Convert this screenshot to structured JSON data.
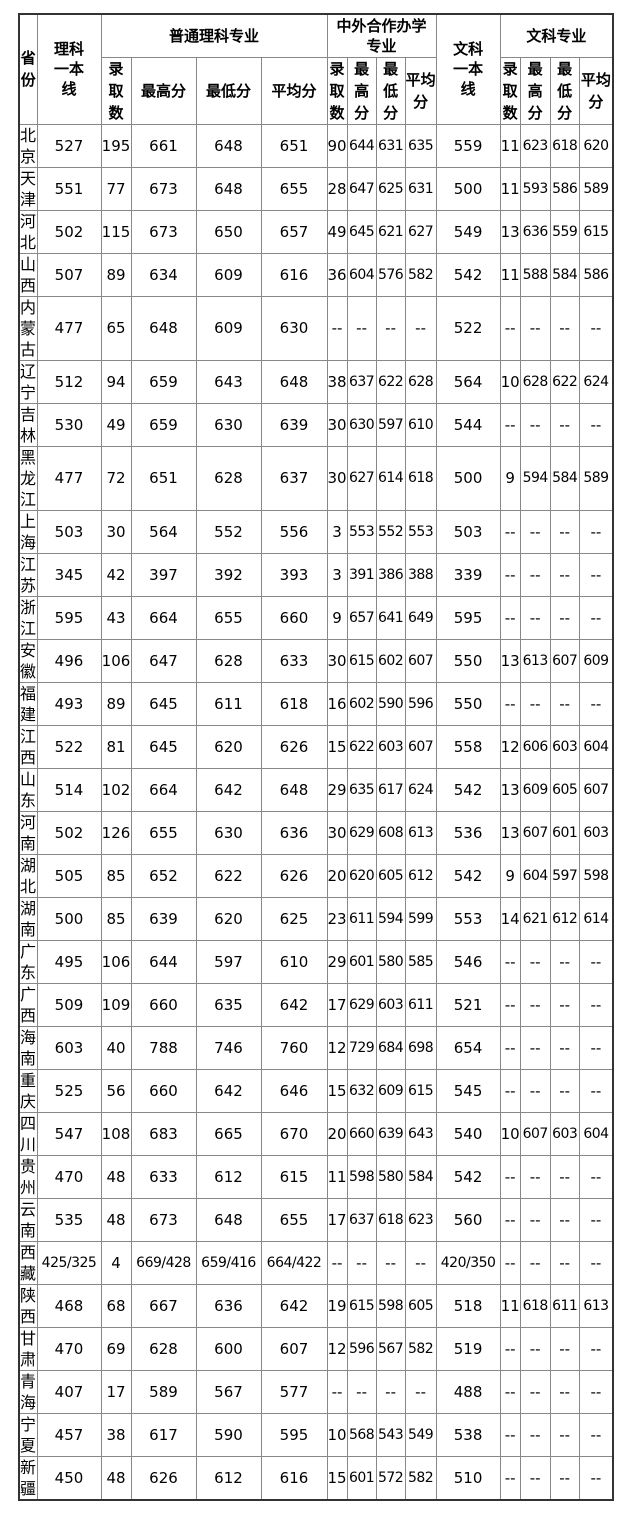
{
  "headers": {
    "province": "省份",
    "science_line": "理科一本线",
    "science_group": "普通理科专业",
    "coop_group": "中外合作办学专业",
    "arts_line": "文科一本线",
    "arts_group": "文科专业",
    "count": "录取数",
    "max": "最高分",
    "min": "最低分",
    "avg": "平均分"
  },
  "rows": [
    [
      "北京",
      "527",
      "195",
      "661",
      "648",
      "651",
      "90",
      "644",
      "631",
      "635",
      "559",
      "11",
      "623",
      "618",
      "620"
    ],
    [
      "天津",
      "551",
      "77",
      "673",
      "648",
      "655",
      "28",
      "647",
      "625",
      "631",
      "500",
      "11",
      "593",
      "586",
      "589"
    ],
    [
      "河北",
      "502",
      "115",
      "673",
      "650",
      "657",
      "49",
      "645",
      "621",
      "627",
      "549",
      "13",
      "636",
      "559",
      "615"
    ],
    [
      "山西",
      "507",
      "89",
      "634",
      "609",
      "616",
      "36",
      "604",
      "576",
      "582",
      "542",
      "11",
      "588",
      "584",
      "586"
    ],
    [
      "内蒙古",
      "477",
      "65",
      "648",
      "609",
      "630",
      "--",
      "--",
      "--",
      "--",
      "522",
      "--",
      "--",
      "--",
      "--"
    ],
    [
      "辽宁",
      "512",
      "94",
      "659",
      "643",
      "648",
      "38",
      "637",
      "622",
      "628",
      "564",
      "10",
      "628",
      "622",
      "624"
    ],
    [
      "吉林",
      "530",
      "49",
      "659",
      "630",
      "639",
      "30",
      "630",
      "597",
      "610",
      "544",
      "--",
      "--",
      "--",
      "--"
    ],
    [
      "黑龙江",
      "477",
      "72",
      "651",
      "628",
      "637",
      "30",
      "627",
      "614",
      "618",
      "500",
      "9",
      "594",
      "584",
      "589"
    ],
    [
      "上海",
      "503",
      "30",
      "564",
      "552",
      "556",
      "3",
      "553",
      "552",
      "553",
      "503",
      "--",
      "--",
      "--",
      "--"
    ],
    [
      "江苏",
      "345",
      "42",
      "397",
      "392",
      "393",
      "3",
      "391",
      "386",
      "388",
      "339",
      "--",
      "--",
      "--",
      "--"
    ],
    [
      "浙江",
      "595",
      "43",
      "664",
      "655",
      "660",
      "9",
      "657",
      "641",
      "649",
      "595",
      "--",
      "--",
      "--",
      "--"
    ],
    [
      "安徽",
      "496",
      "106",
      "647",
      "628",
      "633",
      "30",
      "615",
      "602",
      "607",
      "550",
      "13",
      "613",
      "607",
      "609"
    ],
    [
      "福建",
      "493",
      "89",
      "645",
      "611",
      "618",
      "16",
      "602",
      "590",
      "596",
      "550",
      "--",
      "--",
      "--",
      "--"
    ],
    [
      "江西",
      "522",
      "81",
      "645",
      "620",
      "626",
      "15",
      "622",
      "603",
      "607",
      "558",
      "12",
      "606",
      "603",
      "604"
    ],
    [
      "山东",
      "514",
      "102",
      "664",
      "642",
      "648",
      "29",
      "635",
      "617",
      "624",
      "542",
      "13",
      "609",
      "605",
      "607"
    ],
    [
      "河南",
      "502",
      "126",
      "655",
      "630",
      "636",
      "30",
      "629",
      "608",
      "613",
      "536",
      "13",
      "607",
      "601",
      "603"
    ],
    [
      "湖北",
      "505",
      "85",
      "652",
      "622",
      "626",
      "20",
      "620",
      "605",
      "612",
      "542",
      "9",
      "604",
      "597",
      "598"
    ],
    [
      "湖南",
      "500",
      "85",
      "639",
      "620",
      "625",
      "23",
      "611",
      "594",
      "599",
      "553",
      "14",
      "621",
      "612",
      "614"
    ],
    [
      "广东",
      "495",
      "106",
      "644",
      "597",
      "610",
      "29",
      "601",
      "580",
      "585",
      "546",
      "--",
      "--",
      "--",
      "--"
    ],
    [
      "广西",
      "509",
      "109",
      "660",
      "635",
      "642",
      "17",
      "629",
      "603",
      "611",
      "521",
      "--",
      "--",
      "--",
      "--"
    ],
    [
      "海南",
      "603",
      "40",
      "788",
      "746",
      "760",
      "12",
      "729",
      "684",
      "698",
      "654",
      "--",
      "--",
      "--",
      "--"
    ],
    [
      "重庆",
      "525",
      "56",
      "660",
      "642",
      "646",
      "15",
      "632",
      "609",
      "615",
      "545",
      "--",
      "--",
      "--",
      "--"
    ],
    [
      "四川",
      "547",
      "108",
      "683",
      "665",
      "670",
      "20",
      "660",
      "639",
      "643",
      "540",
      "10",
      "607",
      "603",
      "604"
    ],
    [
      "贵州",
      "470",
      "48",
      "633",
      "612",
      "615",
      "11",
      "598",
      "580",
      "584",
      "542",
      "--",
      "--",
      "--",
      "--"
    ],
    [
      "云南",
      "535",
      "48",
      "673",
      "648",
      "655",
      "17",
      "637",
      "618",
      "623",
      "560",
      "--",
      "--",
      "--",
      "--"
    ],
    [
      "西藏",
      "425/325",
      "4",
      "669/428",
      "659/416",
      "664/422",
      "--",
      "--",
      "--",
      "--",
      "420/350",
      "--",
      "--",
      "--",
      "--"
    ],
    [
      "陕西",
      "468",
      "68",
      "667",
      "636",
      "642",
      "19",
      "615",
      "598",
      "605",
      "518",
      "11",
      "618",
      "611",
      "613"
    ],
    [
      "甘肃",
      "470",
      "69",
      "628",
      "600",
      "607",
      "12",
      "596",
      "567",
      "582",
      "519",
      "--",
      "--",
      "--",
      "--"
    ],
    [
      "青海",
      "407",
      "17",
      "589",
      "567",
      "577",
      "--",
      "--",
      "--",
      "--",
      "488",
      "--",
      "--",
      "--",
      "--"
    ],
    [
      "宁夏",
      "457",
      "38",
      "617",
      "590",
      "595",
      "10",
      "568",
      "543",
      "549",
      "538",
      "--",
      "--",
      "--",
      "--"
    ],
    [
      "新疆",
      "450",
      "48",
      "626",
      "612",
      "616",
      "15",
      "601",
      "572",
      "582",
      "510",
      "--",
      "--",
      "--",
      "--"
    ]
  ]
}
